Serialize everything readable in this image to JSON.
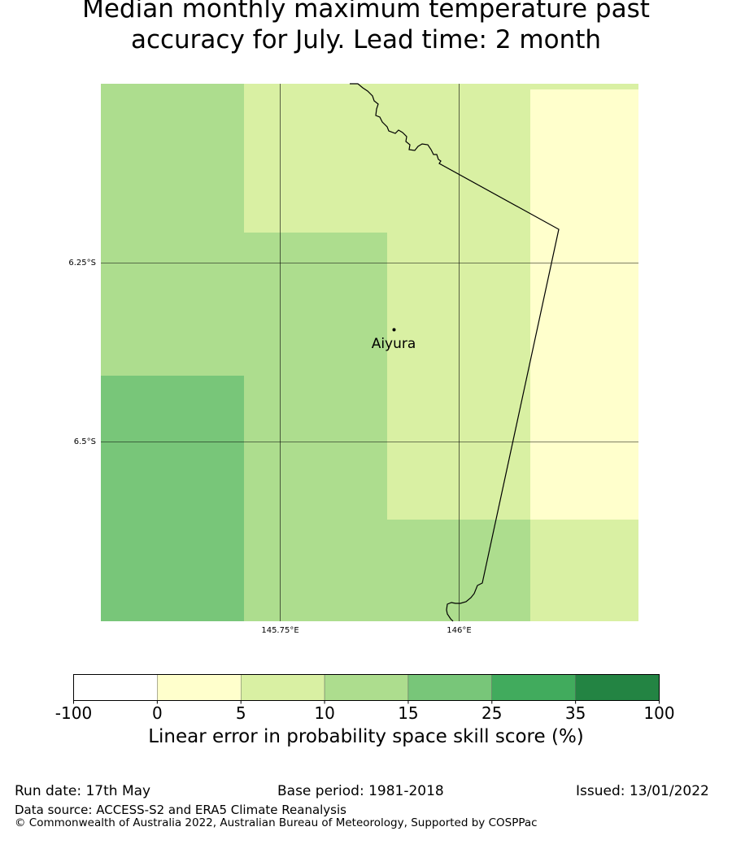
{
  "title_line1": "Median monthly maximum temperature past",
  "title_line2": "accuracy for July. Lead time: 2 month",
  "map": {
    "lat_labels": [
      "6.25°S",
      "6.5°S"
    ],
    "lon_labels": [
      "145.75°E",
      "146°E"
    ],
    "location": {
      "name": "Aiyura"
    },
    "grid_cells": [
      {
        "value_class": "10-15",
        "color": "#addd8e"
      },
      {
        "value_class": "5-10",
        "color": "#d9f0a3"
      },
      {
        "value_class": "0-5",
        "color": "#ffffcc"
      },
      {
        "value_class": "15-25",
        "color": "#78c679"
      }
    ]
  },
  "colorbar": {
    "ticks": [
      "-100",
      "0",
      "5",
      "10",
      "15",
      "25",
      "35",
      "100"
    ],
    "colors": [
      "#ffffff",
      "#ffffcc",
      "#d9f0a3",
      "#addd8e",
      "#78c679",
      "#41ab5d",
      "#238443"
    ],
    "label": "Linear error in probability space skill score (%)"
  },
  "footer": {
    "run_date": "Run date: 17th May",
    "base_period": "Base period: 1981-2018",
    "issued": "Issued: 13/01/2022",
    "data_source": "Data source: ACCESS-S2 and ERA5 Climate Reanalysis",
    "copyright": "© Commonwealth of Australia 2022, Australian Bureau of Meteorology, Supported by COSPPac"
  }
}
